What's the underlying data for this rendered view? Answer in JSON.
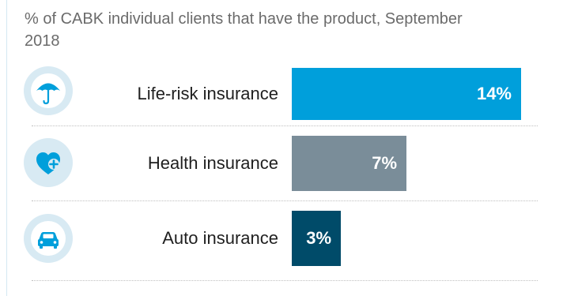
{
  "chart_data": {
    "type": "bar",
    "orientation": "horizontal",
    "title": "% of CABK individual clients that have the product, September 2018",
    "categories": [
      "Life-risk insurance",
      "Health insurance",
      "Auto insurance"
    ],
    "values": [
      14,
      7,
      3
    ],
    "value_labels": [
      "14%",
      "7%",
      "3%"
    ],
    "unit": "%",
    "colors": [
      "#009fdb",
      "#7a8d99",
      "#004b69"
    ],
    "icons": [
      "umbrella-icon",
      "heart-plus-icon",
      "car-icon"
    ],
    "grid": false,
    "legend": "none"
  }
}
